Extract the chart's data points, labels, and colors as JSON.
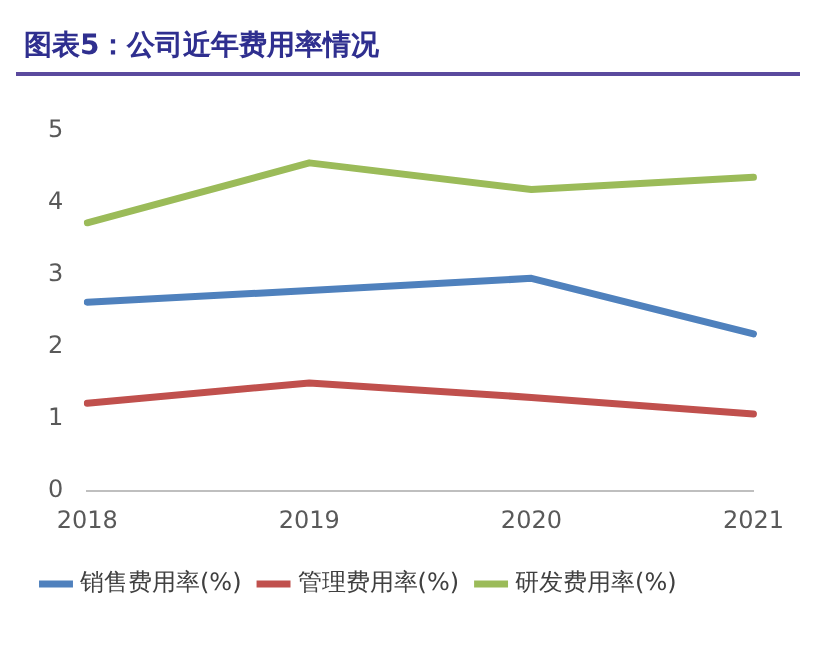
{
  "chart_data": {
    "type": "line",
    "title": "图表5：公司近年费用率情况",
    "categories": [
      "2018",
      "2019",
      "2020",
      "2021"
    ],
    "series": [
      {
        "name": "销售费用率(%)",
        "color": "#4f81bd",
        "values": [
          2.62,
          2.78,
          2.95,
          2.18
        ]
      },
      {
        "name": "管理费用率(%)",
        "color": "#c0504d",
        "values": [
          1.22,
          1.5,
          1.3,
          1.07
        ]
      },
      {
        "name": "研发费用率(%)",
        "color": "#9bbb59",
        "values": [
          3.72,
          4.55,
          4.18,
          4.35
        ]
      }
    ],
    "ylim": [
      0,
      5
    ],
    "yticks": [
      0,
      1,
      2,
      3,
      4,
      5
    ],
    "grid": false,
    "legend": "bottom",
    "marker": "none",
    "line_style": "solid"
  }
}
